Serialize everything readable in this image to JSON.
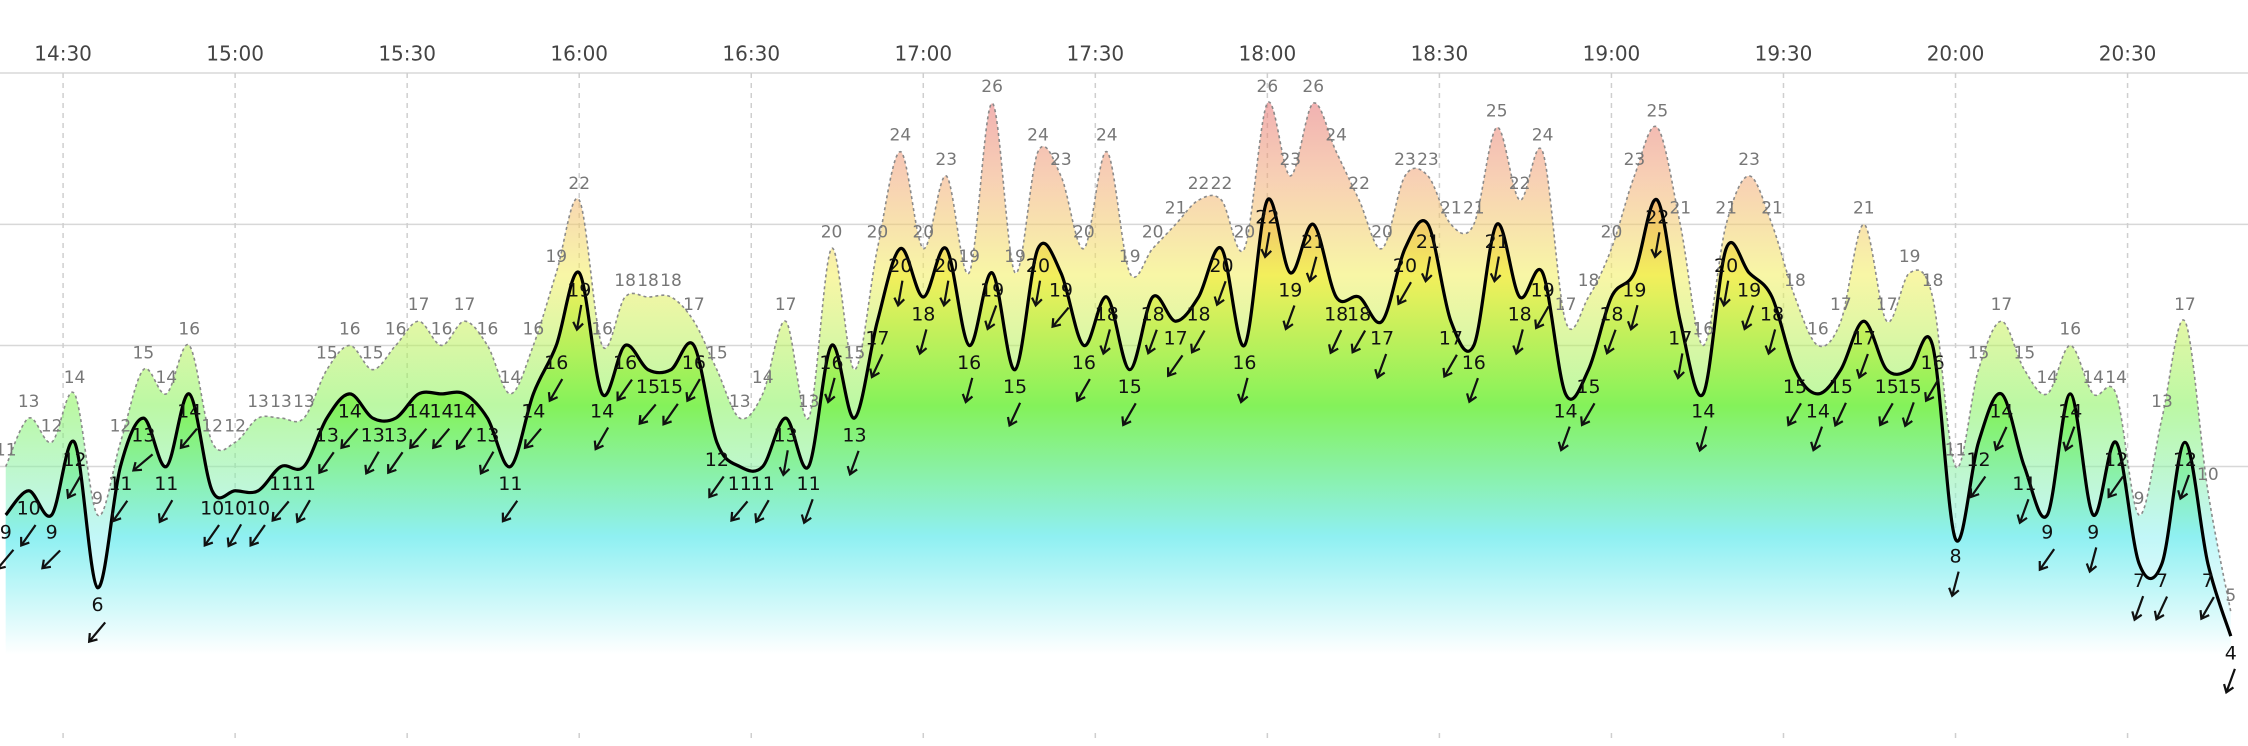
{
  "chart_data": {
    "type": "wind",
    "x": [
      "14:20",
      "14:24",
      "14:28",
      "14:32",
      "14:36",
      "14:40",
      "14:44",
      "14:48",
      "14:52",
      "14:56",
      "15:00",
      "15:04",
      "15:08",
      "15:12",
      "15:16",
      "15:20",
      "15:24",
      "15:28",
      "15:32",
      "15:36",
      "15:40",
      "15:44",
      "15:48",
      "15:52",
      "15:56",
      "16:00",
      "16:04",
      "16:08",
      "16:12",
      "16:16",
      "16:20",
      "16:24",
      "16:28",
      "16:32",
      "16:36",
      "16:40",
      "16:44",
      "16:48",
      "16:52",
      "16:56",
      "17:00",
      "17:04",
      "17:08",
      "17:12",
      "17:16",
      "17:20",
      "17:24",
      "17:28",
      "17:32",
      "17:36",
      "17:40",
      "17:44",
      "17:48",
      "17:52",
      "17:56",
      "18:00",
      "18:04",
      "18:08",
      "18:12",
      "18:16",
      "18:20",
      "18:24",
      "18:28",
      "18:32",
      "18:36",
      "18:40",
      "18:44",
      "18:48",
      "18:52",
      "18:56",
      "19:00",
      "19:04",
      "19:08",
      "19:12",
      "19:16",
      "19:20",
      "19:24",
      "19:28",
      "19:32",
      "19:36",
      "19:40",
      "19:44",
      "19:48",
      "19:52",
      "19:56",
      "20:00",
      "20:04",
      "20:08",
      "20:12",
      "20:16",
      "20:20",
      "20:24",
      "20:28",
      "20:32",
      "20:36",
      "20:40",
      "20:44",
      "20:48"
    ],
    "series": [
      {
        "color": "#000000",
        "values": [
          9,
          10,
          9,
          12,
          6,
          11,
          13,
          11,
          14,
          10,
          10,
          10,
          11,
          11,
          13,
          14,
          13,
          13,
          14,
          14,
          14,
          13,
          11,
          14,
          16,
          19,
          14,
          16,
          15,
          15,
          16,
          12,
          11,
          11,
          13,
          11,
          16,
          13,
          17,
          20,
          18,
          20,
          16,
          19,
          15,
          20,
          19,
          16,
          18,
          15,
          18,
          17,
          18,
          20,
          16,
          22,
          19,
          21,
          18,
          18,
          17,
          20,
          21,
          17,
          16,
          21,
          18,
          19,
          14,
          15,
          18,
          19,
          22,
          17,
          14,
          20,
          19,
          18,
          15,
          14,
          15,
          17,
          15,
          15,
          16,
          8,
          12,
          14,
          11,
          9,
          14,
          9,
          12,
          7,
          7,
          12,
          7,
          4
        ]
      },
      {
        "color": "#8a8a8a",
        "style": "dotted",
        "values": [
          11,
          13,
          12,
          14,
          9,
          12,
          15,
          14,
          16,
          12,
          12,
          13,
          13,
          13,
          15,
          16,
          15,
          16,
          17,
          16,
          17,
          16,
          14,
          16,
          19,
          22,
          16,
          18,
          18,
          18,
          17,
          15,
          13,
          14,
          17,
          13,
          20,
          15,
          20,
          24,
          20,
          23,
          19,
          26,
          19,
          24,
          23,
          20,
          24,
          19,
          20,
          21,
          22,
          22,
          20,
          26,
          23,
          26,
          24,
          22,
          20,
          23,
          23,
          21,
          21,
          25,
          22,
          24,
          17,
          18,
          20,
          23,
          25,
          21,
          16,
          21,
          23,
          21,
          18,
          16,
          17,
          21,
          17,
          19,
          18,
          11,
          15,
          17,
          15,
          14,
          16,
          14,
          14,
          9,
          13,
          17,
          10,
          5
        ]
      }
    ],
    "directions": [
      40,
      35,
      45,
      30,
      40,
      35,
      50,
      30,
      40,
      35,
      30,
      35,
      40,
      30,
      35,
      40,
      30,
      35,
      40,
      40,
      35,
      30,
      35,
      40,
      30,
      10,
      30,
      35,
      40,
      35,
      30,
      35,
      40,
      30,
      10,
      20,
      15,
      20,
      25,
      10,
      15,
      10,
      15,
      20,
      25,
      10,
      40,
      30,
      15,
      30,
      20,
      35,
      30,
      20,
      15,
      10,
      20,
      15,
      25,
      30,
      20,
      30,
      10,
      30,
      20,
      10,
      15,
      30,
      20,
      30,
      20,
      15,
      10,
      10,
      15,
      10,
      20,
      15,
      30,
      20,
      25,
      20,
      30,
      20,
      30,
      15,
      35,
      25,
      20,
      35,
      20,
      15,
      35,
      20,
      25,
      20,
      30,
      20
    ],
    "xlim": [
      "14:19",
      "20:51"
    ],
    "xticks": [
      "14:30",
      "15:00",
      "15:30",
      "16:00",
      "16:30",
      "17:00",
      "17:30",
      "18:00",
      "18:30",
      "19:00",
      "19:30",
      "20:00",
      "20:30"
    ],
    "ylim": [
      0,
      27
    ],
    "ygrid": [
      11,
      16,
      21
    ]
  }
}
